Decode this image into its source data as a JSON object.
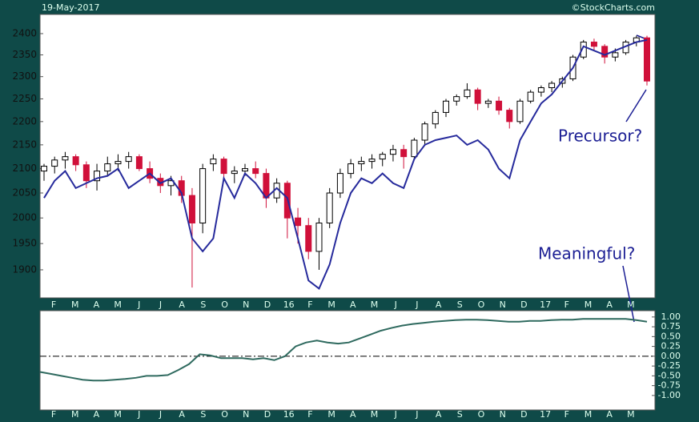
{
  "date": "19-May-2017",
  "credit": "©StockCharts.com",
  "chart_data": [
    {
      "type": "candlestick",
      "log_scale": true,
      "ylim": [
        1848,
        2446
      ],
      "yticks": [
        1900,
        1950,
        2000,
        2050,
        2100,
        2150,
        2200,
        2250,
        2300,
        2350,
        2400
      ],
      "month_labels": [
        "F",
        "M",
        "A",
        "M",
        "J",
        "J",
        "A",
        "S",
        "O",
        "N",
        "D",
        "16",
        "F",
        "M",
        "A",
        "M",
        "J",
        "J",
        "A",
        "S",
        "O",
        "N",
        "D",
        "17",
        "F",
        "M",
        "A",
        "M"
      ],
      "candles": {
        "up_color": "#000000",
        "down_color": "#d0103a",
        "open": [
          2095,
          2105,
          2118,
          2125,
          2108,
          2075,
          2095,
          2110,
          2115,
          2125,
          2100,
          2080,
          2065,
          2075,
          2045,
          1990,
          2110,
          2120,
          2090,
          2095,
          2100,
          2090,
          2040,
          2070,
          2000,
          1985,
          1935,
          1990,
          2050,
          2090,
          2110,
          2115,
          2120,
          2130,
          2140,
          2125,
          2160,
          2195,
          2220,
          2245,
          2255,
          2270,
          2240,
          2245,
          2225,
          2200,
          2245,
          2265,
          2275,
          2285,
          2295,
          2345,
          2380,
          2370,
          2345,
          2355,
          2380,
          2390
        ],
        "high": [
          2110,
          2125,
          2135,
          2130,
          2115,
          2110,
          2125,
          2130,
          2135,
          2130,
          2115,
          2090,
          2085,
          2085,
          2060,
          2110,
          2130,
          2125,
          2105,
          2110,
          2115,
          2100,
          2080,
          2075,
          2020,
          2000,
          2000,
          2060,
          2100,
          2120,
          2125,
          2130,
          2135,
          2150,
          2150,
          2165,
          2200,
          2225,
          2250,
          2260,
          2285,
          2275,
          2250,
          2255,
          2230,
          2250,
          2270,
          2280,
          2290,
          2300,
          2350,
          2385,
          2388,
          2375,
          2365,
          2385,
          2395,
          2395
        ],
        "low": [
          2075,
          2090,
          2100,
          2095,
          2060,
          2055,
          2085,
          2095,
          2100,
          2095,
          2070,
          2050,
          2045,
          2030,
          1867,
          1970,
          2095,
          2080,
          2070,
          2085,
          2080,
          2020,
          2030,
          1960,
          1950,
          1920,
          1900,
          1980,
          2040,
          2080,
          2095,
          2100,
          2105,
          2115,
          2100,
          2120,
          2150,
          2185,
          2210,
          2235,
          2250,
          2225,
          2230,
          2215,
          2185,
          2195,
          2240,
          2255,
          2265,
          2275,
          2290,
          2340,
          2360,
          2330,
          2335,
          2350,
          2370,
          2280
        ],
        "close": [
          2105,
          2118,
          2125,
          2108,
          2075,
          2095,
          2110,
          2115,
          2125,
          2100,
          2080,
          2065,
          2075,
          2045,
          1990,
          2100,
          2120,
          2090,
          2095,
          2100,
          2090,
          2040,
          2070,
          2000,
          1985,
          1935,
          1990,
          2050,
          2090,
          2110,
          2115,
          2120,
          2130,
          2140,
          2125,
          2160,
          2195,
          2220,
          2245,
          2255,
          2270,
          2240,
          2245,
          2225,
          2200,
          2245,
          2265,
          2275,
          2285,
          2295,
          2345,
          2380,
          2370,
          2345,
          2355,
          2380,
          2390,
          2290
        ]
      },
      "series": [
        {
          "color": "#262a9c",
          "values": [
            2040,
            2075,
            2095,
            2060,
            2070,
            2080,
            2085,
            2100,
            2060,
            2075,
            2090,
            2070,
            2080,
            2050,
            1960,
            1935,
            1960,
            2080,
            2040,
            2090,
            2070,
            2040,
            2060,
            2040,
            1960,
            1880,
            1865,
            1910,
            1990,
            2050,
            2080,
            2070,
            2090,
            2070,
            2060,
            2120,
            2150,
            2160,
            2165,
            2170,
            2150,
            2160,
            2140,
            2100,
            2080,
            2160,
            2200,
            2240,
            2260,
            2290,
            2320,
            2370,
            2360,
            2350,
            2360,
            2370,
            2380,
            2385
          ]
        }
      ],
      "annotations": [
        "Precursor?",
        "Meaningful?"
      ],
      "annotation_color": "#1c1f94"
    },
    {
      "type": "line",
      "ylim": [
        -1.37,
        1.16
      ],
      "yticks": [
        {
          "value": 1,
          "label": "1.00"
        },
        {
          "value": 0.75,
          "label": "0.75"
        },
        {
          "value": 0.5,
          "label": "0.50"
        },
        {
          "value": 0.25,
          "label": "0.25"
        },
        {
          "value": 0,
          "label": "0.00"
        },
        {
          "value": -0.25,
          "label": "-0.25"
        },
        {
          "value": -0.5,
          "label": "-0.50"
        },
        {
          "value": -0.75,
          "label": "-0.75"
        },
        {
          "value": -1,
          "label": "-1.00"
        }
      ],
      "zero_line": true,
      "month_labels": [
        "F",
        "M",
        "A",
        "M",
        "J",
        "J",
        "A",
        "S",
        "O",
        "N",
        "D",
        "16",
        "F",
        "M",
        "A",
        "M",
        "J",
        "J",
        "A",
        "S",
        "O",
        "N",
        "D",
        "17",
        "F",
        "M",
        "A",
        "M"
      ],
      "series": [
        {
          "color": "#2f6a5f",
          "values": [
            -0.4,
            -0.45,
            -0.5,
            -0.55,
            -0.6,
            -0.62,
            -0.62,
            -0.6,
            -0.58,
            -0.55,
            -0.5,
            -0.5,
            -0.48,
            -0.35,
            -0.2,
            0.05,
            0.02,
            -0.05,
            -0.05,
            -0.05,
            -0.08,
            -0.05,
            -0.1,
            0.0,
            0.25,
            0.35,
            0.4,
            0.35,
            0.32,
            0.35,
            0.45,
            0.55,
            0.65,
            0.72,
            0.78,
            0.82,
            0.85,
            0.88,
            0.9,
            0.92,
            0.93,
            0.93,
            0.92,
            0.9,
            0.88,
            0.88,
            0.9,
            0.9,
            0.92,
            0.93,
            0.93,
            0.95,
            0.95,
            0.95,
            0.95,
            0.95,
            0.92,
            0.88
          ]
        }
      ]
    }
  ]
}
